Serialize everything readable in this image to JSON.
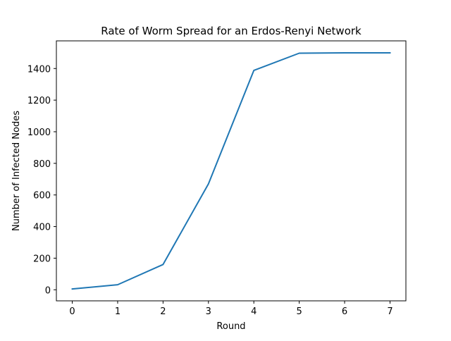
{
  "chart_data": {
    "type": "line",
    "title": "Rate of Worm Spread for an Erdos-Renyi Network",
    "xlabel": "Round",
    "ylabel": "Number of Infected Nodes",
    "xlim": [
      -0.35,
      7.35
    ],
    "ylim": [
      -70,
      1575
    ],
    "xticks": [
      0,
      1,
      2,
      3,
      4,
      5,
      6,
      7
    ],
    "yticks": [
      0,
      200,
      400,
      600,
      800,
      1000,
      1200,
      1400
    ],
    "grid": false,
    "legend": "none",
    "series": [
      {
        "x": [
          0,
          1,
          2,
          3,
          4,
          5,
          6,
          7
        ],
        "values": [
          5,
          32,
          160,
          670,
          1388,
          1497,
          1499,
          1499
        ],
        "color": "#1f77b4"
      }
    ]
  }
}
